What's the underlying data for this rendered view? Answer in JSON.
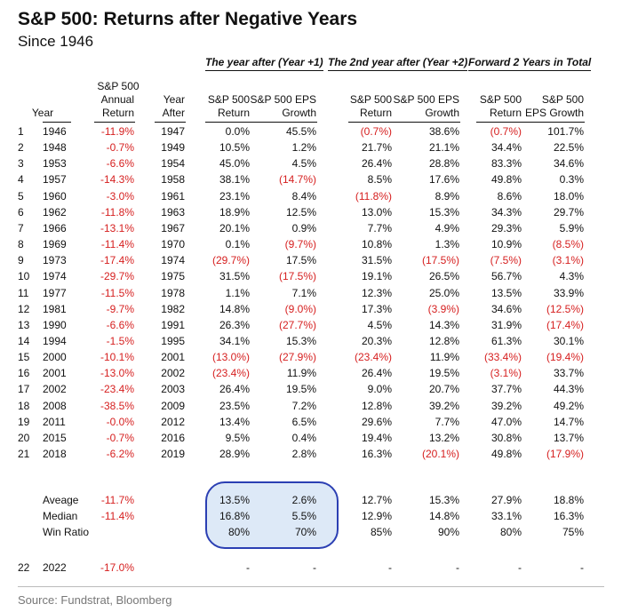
{
  "title": "S&P 500: Returns after Negative Years",
  "subtitle": "Since 1946",
  "groups": {
    "g1": "The year after (Year +1)",
    "g2": "The 2nd year after (Year +2)",
    "g3": "Forward 2 Years in Total"
  },
  "headers": {
    "year": "Year",
    "annual_1": "S&P 500",
    "annual_2": "Annual",
    "annual_3": "Return",
    "after_1": "Year",
    "after_2": "After",
    "sp500": "S&P 500",
    "sp500_eps": "S&P 500 EPS",
    "return": "Return",
    "growth": "Growth",
    "eps_growth": "EPS Growth"
  },
  "rows": [
    {
      "n": "1",
      "year": "1946",
      "ret": "-11.9%",
      "after": "1947",
      "y1r": "0.0%",
      "y1e": "45.5%",
      "y2r": "(0.7%)",
      "y2e": "38.6%",
      "tr": "(0.7%)",
      "te": "101.7%"
    },
    {
      "n": "2",
      "year": "1948",
      "ret": "-0.7%",
      "after": "1949",
      "y1r": "10.5%",
      "y1e": "1.2%",
      "y2r": "21.7%",
      "y2e": "21.1%",
      "tr": "34.4%",
      "te": "22.5%"
    },
    {
      "n": "3",
      "year": "1953",
      "ret": "-6.6%",
      "after": "1954",
      "y1r": "45.0%",
      "y1e": "4.5%",
      "y2r": "26.4%",
      "y2e": "28.8%",
      "tr": "83.3%",
      "te": "34.6%"
    },
    {
      "n": "4",
      "year": "1957",
      "ret": "-14.3%",
      "after": "1958",
      "y1r": "38.1%",
      "y1e": "(14.7%)",
      "y2r": "8.5%",
      "y2e": "17.6%",
      "tr": "49.8%",
      "te": "0.3%"
    },
    {
      "n": "5",
      "year": "1960",
      "ret": "-3.0%",
      "after": "1961",
      "y1r": "23.1%",
      "y1e": "8.4%",
      "y2r": "(11.8%)",
      "y2e": "8.9%",
      "tr": "8.6%",
      "te": "18.0%"
    },
    {
      "n": "6",
      "year": "1962",
      "ret": "-11.8%",
      "after": "1963",
      "y1r": "18.9%",
      "y1e": "12.5%",
      "y2r": "13.0%",
      "y2e": "15.3%",
      "tr": "34.3%",
      "te": "29.7%"
    },
    {
      "n": "7",
      "year": "1966",
      "ret": "-13.1%",
      "after": "1967",
      "y1r": "20.1%",
      "y1e": "0.9%",
      "y2r": "7.7%",
      "y2e": "4.9%",
      "tr": "29.3%",
      "te": "5.9%"
    },
    {
      "n": "8",
      "year": "1969",
      "ret": "-11.4%",
      "after": "1970",
      "y1r": "0.1%",
      "y1e": "(9.7%)",
      "y2r": "10.8%",
      "y2e": "1.3%",
      "tr": "10.9%",
      "te": "(8.5%)"
    },
    {
      "n": "9",
      "year": "1973",
      "ret": "-17.4%",
      "after": "1974",
      "y1r": "(29.7%)",
      "y1e": "17.5%",
      "y2r": "31.5%",
      "y2e": "(17.5%)",
      "tr": "(7.5%)",
      "te": "(3.1%)"
    },
    {
      "n": "10",
      "year": "1974",
      "ret": "-29.7%",
      "after": "1975",
      "y1r": "31.5%",
      "y1e": "(17.5%)",
      "y2r": "19.1%",
      "y2e": "26.5%",
      "tr": "56.7%",
      "te": "4.3%"
    },
    {
      "n": "11",
      "year": "1977",
      "ret": "-11.5%",
      "after": "1978",
      "y1r": "1.1%",
      "y1e": "7.1%",
      "y2r": "12.3%",
      "y2e": "25.0%",
      "tr": "13.5%",
      "te": "33.9%"
    },
    {
      "n": "12",
      "year": "1981",
      "ret": "-9.7%",
      "after": "1982",
      "y1r": "14.8%",
      "y1e": "(9.0%)",
      "y2r": "17.3%",
      "y2e": "(3.9%)",
      "tr": "34.6%",
      "te": "(12.5%)"
    },
    {
      "n": "13",
      "year": "1990",
      "ret": "-6.6%",
      "after": "1991",
      "y1r": "26.3%",
      "y1e": "(27.7%)",
      "y2r": "4.5%",
      "y2e": "14.3%",
      "tr": "31.9%",
      "te": "(17.4%)"
    },
    {
      "n": "14",
      "year": "1994",
      "ret": "-1.5%",
      "after": "1995",
      "y1r": "34.1%",
      "y1e": "15.3%",
      "y2r": "20.3%",
      "y2e": "12.8%",
      "tr": "61.3%",
      "te": "30.1%"
    },
    {
      "n": "15",
      "year": "2000",
      "ret": "-10.1%",
      "after": "2001",
      "y1r": "(13.0%)",
      "y1e": "(27.9%)",
      "y2r": "(23.4%)",
      "y2e": "11.9%",
      "tr": "(33.4%)",
      "te": "(19.4%)"
    },
    {
      "n": "16",
      "year": "2001",
      "ret": "-13.0%",
      "after": "2002",
      "y1r": "(23.4%)",
      "y1e": "11.9%",
      "y2r": "26.4%",
      "y2e": "19.5%",
      "tr": "(3.1%)",
      "te": "33.7%"
    },
    {
      "n": "17",
      "year": "2002",
      "ret": "-23.4%",
      "after": "2003",
      "y1r": "26.4%",
      "y1e": "19.5%",
      "y2r": "9.0%",
      "y2e": "20.7%",
      "tr": "37.7%",
      "te": "44.3%"
    },
    {
      "n": "18",
      "year": "2008",
      "ret": "-38.5%",
      "after": "2009",
      "y1r": "23.5%",
      "y1e": "7.2%",
      "y2r": "12.8%",
      "y2e": "39.2%",
      "tr": "39.2%",
      "te": "49.2%"
    },
    {
      "n": "19",
      "year": "2011",
      "ret": "-0.0%",
      "after": "2012",
      "y1r": "13.4%",
      "y1e": "6.5%",
      "y2r": "29.6%",
      "y2e": "7.7%",
      "tr": "47.0%",
      "te": "14.7%"
    },
    {
      "n": "20",
      "year": "2015",
      "ret": "-0.7%",
      "after": "2016",
      "y1r": "9.5%",
      "y1e": "0.4%",
      "y2r": "19.4%",
      "y2e": "13.2%",
      "tr": "30.8%",
      "te": "13.7%"
    },
    {
      "n": "21",
      "year": "2018",
      "ret": "-6.2%",
      "after": "2019",
      "y1r": "28.9%",
      "y1e": "2.8%",
      "y2r": "16.3%",
      "y2e": "(20.1%)",
      "tr": "49.8%",
      "te": "(17.9%)"
    }
  ],
  "summary": [
    {
      "label": "Aveage",
      "ret": "-11.7%",
      "y1r": "13.5%",
      "y1e": "2.6%",
      "y2r": "12.7%",
      "y2e": "15.3%",
      "tr": "27.9%",
      "te": "18.8%"
    },
    {
      "label": "Median",
      "ret": "-11.4%",
      "y1r": "16.8%",
      "y1e": "5.5%",
      "y2r": "12.9%",
      "y2e": "14.8%",
      "tr": "33.1%",
      "te": "16.3%"
    },
    {
      "label": "Win Ratio",
      "ret": "",
      "y1r": "80%",
      "y1e": "70%",
      "y2r": "85%",
      "y2e": "90%",
      "tr": "80%",
      "te": "75%"
    }
  ],
  "last_row": {
    "n": "22",
    "year": "2022",
    "ret": "-17.0%",
    "y1r": "-",
    "y1e": "-",
    "y2r": "-",
    "y2e": "-",
    "tr": "-",
    "te": "-"
  },
  "source": "Source: Fundstrat, Bloomberg",
  "colors": {
    "negative": "#d62020",
    "highlight_fill": "#dde9f7",
    "highlight_border": "#2b3fb3"
  }
}
